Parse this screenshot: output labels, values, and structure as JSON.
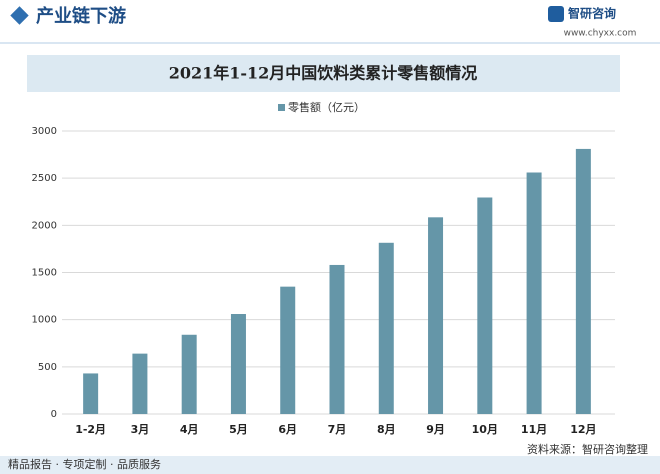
{
  "header": {
    "section": "产业链下游",
    "logo": "智研咨询",
    "website": "www.chyxx.com"
  },
  "chart_data": {
    "type": "bar",
    "title": "2021年1-12月中国饮料类累计零售额情况",
    "categories": [
      "1-2月",
      "3月",
      "4月",
      "5月",
      "6月",
      "7月",
      "8月",
      "9月",
      "10月",
      "11月",
      "12月"
    ],
    "series": [
      {
        "name": "零售额（亿元）",
        "color": "#6596a8",
        "values": [
          430,
          640,
          840,
          1060,
          1350,
          1580,
          1815,
          2085,
          2295,
          2560,
          2810
        ]
      }
    ],
    "ylim": [
      0,
      3000
    ],
    "yticks": [
      0,
      500,
      1000,
      1500,
      2000,
      2500,
      3000
    ],
    "grid": true,
    "legend": "top"
  },
  "footer": {
    "slogan": "精品报告 · 专项定制 · 品质服务",
    "source": "资料来源：智研咨询整理"
  }
}
